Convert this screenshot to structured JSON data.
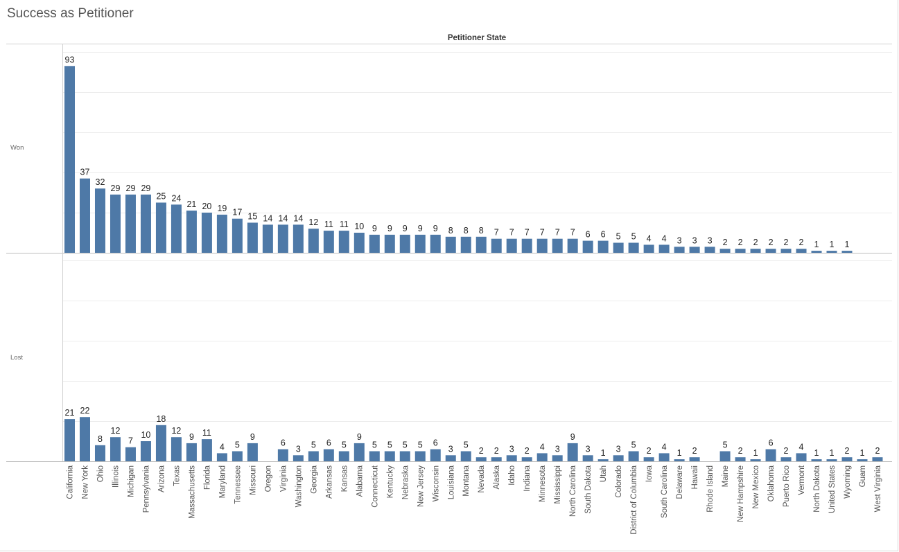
{
  "page": {
    "title": "Success as Petitioner"
  },
  "chart_data": {
    "type": "bar",
    "title": "Success as Petitioner",
    "column_header": "Petitioner State",
    "color": "#4e79a7",
    "grid": true,
    "categories": [
      "California",
      "New York",
      "Ohio",
      "Illinois",
      "Michigan",
      "Pennsylvania",
      "Arizona",
      "Texas",
      "Massachusetts",
      "Florida",
      "Maryland",
      "Tennessee",
      "Missouri",
      "Oregon",
      "Virginia",
      "Washington",
      "Georgia",
      "Arkansas",
      "Kansas",
      "Alabama",
      "Connecticut",
      "Kentucky",
      "Nebraska",
      "New Jersey",
      "Wisconsin",
      "Louisiana",
      "Montana",
      "Nevada",
      "Alaska",
      "Idaho",
      "Indiana",
      "Minnesota",
      "Mississippi",
      "North Carolina",
      "South Dakota",
      "Utah",
      "Colorado",
      "District of Columbia",
      "Iowa",
      "South Carolina",
      "Delaware",
      "Hawaii",
      "Rhode Island",
      "Maine",
      "New Hampshire",
      "New Mexico",
      "Oklahoma",
      "Puerto Rico",
      "Vermont",
      "North Dakota",
      "United States",
      "Wyoming",
      "Guam",
      "West Virginia"
    ],
    "series": [
      {
        "name": "Won",
        "values": [
          93,
          37,
          32,
          29,
          29,
          29,
          25,
          24,
          21,
          20,
          19,
          17,
          15,
          14,
          14,
          14,
          12,
          11,
          11,
          10,
          9,
          9,
          9,
          9,
          9,
          8,
          8,
          8,
          7,
          7,
          7,
          7,
          7,
          7,
          6,
          6,
          5,
          5,
          4,
          4,
          3,
          3,
          3,
          2,
          2,
          2,
          2,
          2,
          2,
          1,
          1,
          1,
          null,
          null
        ]
      },
      {
        "name": "Lost",
        "values": [
          21,
          22,
          8,
          12,
          7,
          10,
          18,
          12,
          9,
          11,
          4,
          5,
          9,
          null,
          6,
          3,
          5,
          6,
          5,
          9,
          5,
          5,
          5,
          5,
          6,
          3,
          5,
          2,
          2,
          3,
          2,
          4,
          3,
          9,
          3,
          1,
          3,
          5,
          2,
          4,
          1,
          2,
          null,
          5,
          2,
          1,
          6,
          2,
          4,
          1,
          1,
          2,
          1,
          2
        ]
      }
    ],
    "ylim": [
      0,
      100
    ]
  }
}
